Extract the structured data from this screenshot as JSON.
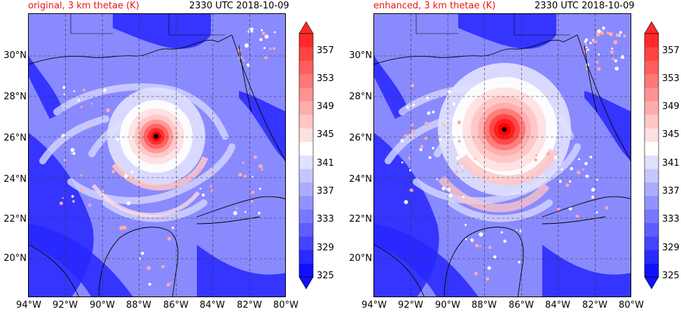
{
  "panels": [
    {
      "title_left": "original, 3 km thetae (K)",
      "title_right": "2330 UTC 2018-10-09",
      "storm": "compact"
    },
    {
      "title_left": "enhanced, 3 km thetae (K)",
      "title_right": "2330 UTC 2018-10-09",
      "storm": "broad"
    }
  ],
  "axes": {
    "lon_ticks": [
      "94°W",
      "92°W",
      "90°W",
      "88°W",
      "86°W",
      "84°W",
      "82°W",
      "80°W"
    ],
    "lat_ticks": [
      "30°N",
      "28°N",
      "26°N",
      "24°N",
      "22°N",
      "20°N"
    ]
  },
  "colorbar": {
    "labels": [
      "357",
      "353",
      "349",
      "345",
      "341",
      "337",
      "333",
      "329",
      "325"
    ],
    "colors": [
      "#1010ff",
      "#2a2aff",
      "#4444ff",
      "#5e5eff",
      "#7878ff",
      "#9292ff",
      "#acacff",
      "#c6c6ff",
      "#e0e0ff",
      "#ffffff",
      "#ffe0e0",
      "#ffc6c6",
      "#ffacac",
      "#ff9292",
      "#ff7878",
      "#ff5e5e",
      "#ff4444",
      "#ff2a2a"
    ]
  }
}
